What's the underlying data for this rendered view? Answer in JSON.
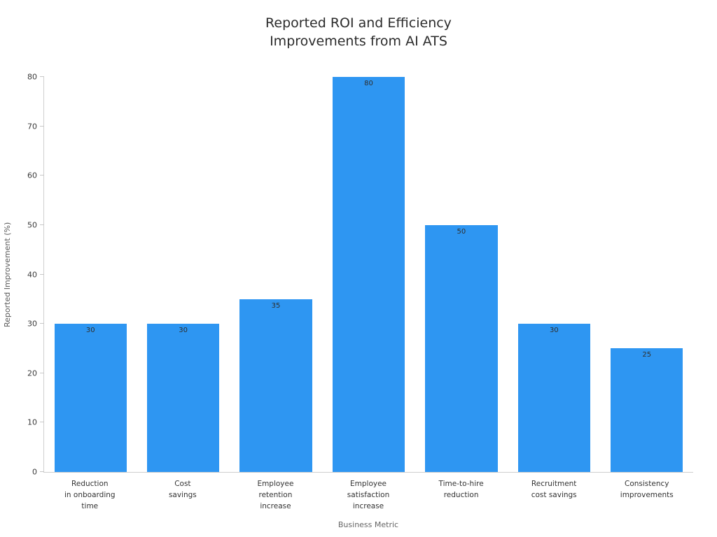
{
  "chart_data": {
    "type": "bar",
    "title": "Reported ROI and Efficiency\nImprovements from AI ATS",
    "categories": [
      "Reduction\nin onboarding\ntime",
      "Cost\nsavings",
      "Employee\nretention\nincrease",
      "Employee\nsatisfaction\nincrease",
      "Time-to-hire\nreduction",
      "Recruitment\ncost savings",
      "Consistency\nimprovements"
    ],
    "values": [
      30,
      30,
      35,
      80,
      50,
      30,
      25
    ],
    "xlabel": "Business Metric",
    "ylabel": "Reported Improvement (%)",
    "ylim": [
      0,
      80
    ],
    "yticks": [
      0,
      10,
      20,
      30,
      40,
      50,
      60,
      70,
      80
    ],
    "bar_color": "#2e96f2",
    "value_label_color": "#2f2f2f",
    "axis_line_color": "#cfcfcf",
    "grid": false,
    "legend": null
  }
}
